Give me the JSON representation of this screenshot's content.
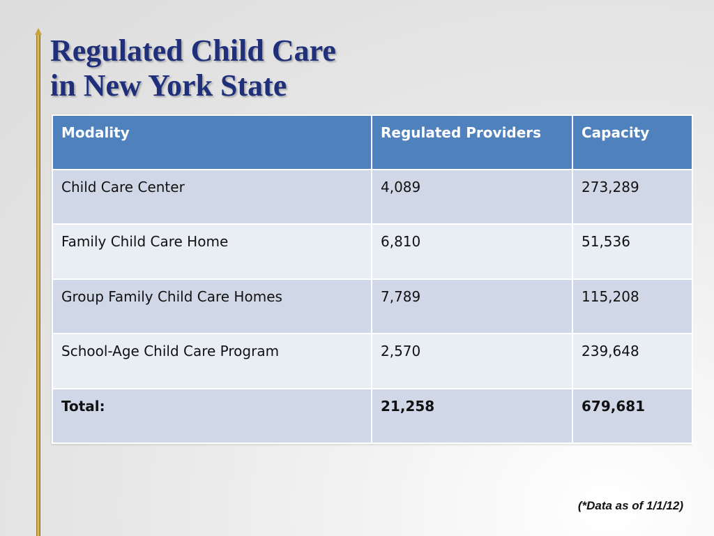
{
  "slide": {
    "title_line1": "Regulated Child Care",
    "title_line2": "in New York State",
    "footnote": "(*Data as of 1/1/12)"
  },
  "table": {
    "headers": [
      "Modality",
      "Regulated Providers",
      "Capacity"
    ],
    "rows": [
      [
        "Child Care Center",
        "4,089",
        "273,289"
      ],
      [
        "Family Child Care Home",
        "6,810",
        "51,536"
      ],
      [
        "Group Family Child Care Homes",
        "7,789",
        "115,208"
      ],
      [
        "School-Age Child Care Program",
        "2,570",
        "239,648"
      ]
    ],
    "total": [
      "Total:",
      "21,258",
      "679,681"
    ]
  },
  "colors": {
    "title": "#1f2f7a",
    "header_bg": "#4f81bd",
    "row_dark": "#d0d8e8",
    "row_light": "#e9edf4",
    "accent_gold": "#c9a23a"
  }
}
